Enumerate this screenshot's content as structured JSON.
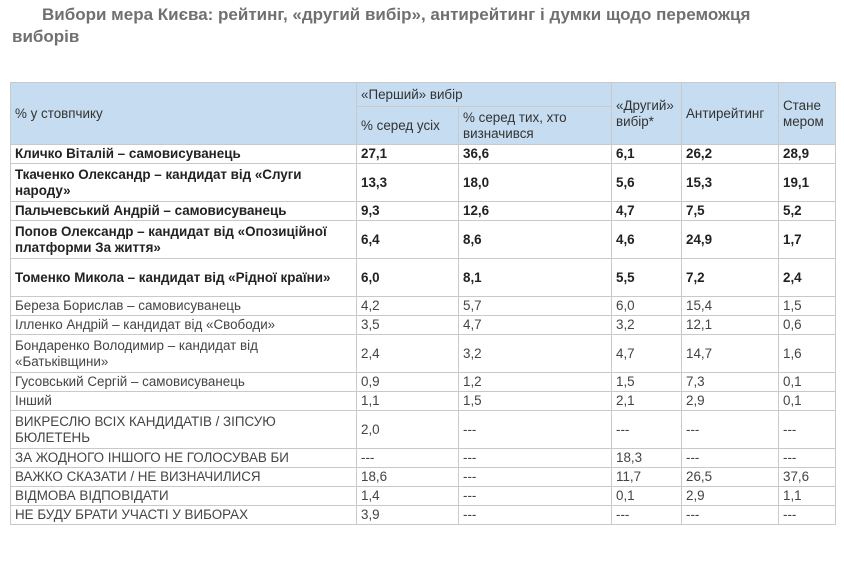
{
  "title": "Вибори мера Києва: рейтинг, «другий вибір», антирейтинг і думки щодо переможця виборів",
  "table": {
    "header": {
      "row_label": "% у стовпчику",
      "first_choice": "«Перший» вибір",
      "first_all": "% серед усіх",
      "first_decided": "% серед тих, хто визначився",
      "second_choice": "«Другий» вибір*",
      "antirating": "Антирейтинг",
      "will_win": "Стане мером"
    },
    "rows": [
      {
        "name": "Кличко Віталій – самовисуванець",
        "all": "27,1",
        "decided": "36,6",
        "second": "6,1",
        "anti": "26,2",
        "win": "28,9",
        "bold": true
      },
      {
        "name": "Ткаченко Олександр – кандидат від «Слуги народу»",
        "all": "13,3",
        "decided": "18,0",
        "second": "5,6",
        "anti": "15,3",
        "win": "19,1",
        "bold": true
      },
      {
        "name": "Пальчевський Андрій – самовисуванець",
        "all": "9,3",
        "decided": "12,6",
        "second": "4,7",
        "anti": "7,5",
        "win": "5,2",
        "bold": true
      },
      {
        "name": "Попов Олександр – кандидат від «Опозиційної платформи За життя»",
        "all": "6,4",
        "decided": "8,6",
        "second": "4,6",
        "anti": "24,9",
        "win": "1,7",
        "bold": true
      },
      {
        "name": "Томенко Микола – кандидат від «Рідної країни»",
        "all": "6,0",
        "decided": "8,1",
        "second": "5,5",
        "anti": "7,2",
        "win": "2,4",
        "bold": true
      },
      {
        "name": "Береза Борислав – самовисуванець",
        "all": "4,2",
        "decided": "5,7",
        "second": "6,0",
        "anti": "15,4",
        "win": "1,5",
        "bold": false
      },
      {
        "name": "Ілленко Андрій – кандидат від «Свободи»",
        "all": "3,5",
        "decided": "4,7",
        "second": "3,2",
        "anti": "12,1",
        "win": "0,6",
        "bold": false
      },
      {
        "name": "Бондаренко Володимир – кандидат від «Батьківщини»",
        "all": "2,4",
        "decided": "3,2",
        "second": "4,7",
        "anti": "14,7",
        "win": "1,6",
        "bold": false
      },
      {
        "name": "Гусовський Сергій – самовисуванець",
        "all": "0,9",
        "decided": "1,2",
        "second": "1,5",
        "anti": "7,3",
        "win": "0,1",
        "bold": false
      },
      {
        "name": "Інший",
        "all": "1,1",
        "decided": "1,5",
        "second": "2,1",
        "anti": "2,9",
        "win": "0,1",
        "bold": false
      },
      {
        "name": "ВИКРЕСЛЮ ВСІХ КАНДИДАТІВ / ЗІПСУЮ БЮЛЕТЕНЬ",
        "all": "2,0",
        "decided": "---",
        "second": "---",
        "anti": "---",
        "win": "---",
        "bold": false
      },
      {
        "name": "ЗА ЖОДНОГО ІНШОГО НЕ ГОЛОСУВАВ БИ",
        "all": "---",
        "decided": "---",
        "second": "18,3",
        "anti": "---",
        "win": "---",
        "bold": false
      },
      {
        "name": "ВАЖКО СКАЗАТИ / НЕ ВИЗНАЧИЛИСЯ",
        "all": "18,6",
        "decided": "---",
        "second": "11,7",
        "anti": "26,5",
        "win": "37,6",
        "bold": false
      },
      {
        "name": "ВІДМОВА ВІДПОВІДАТИ",
        "all": "1,4",
        "decided": "---",
        "second": "0,1",
        "anti": "2,9",
        "win": "1,1",
        "bold": false
      },
      {
        "name": "НЕ БУДУ БРАТИ УЧАСТІ У ВИБОРАХ",
        "all": "3,9",
        "decided": "---",
        "second": "---",
        "anti": "---",
        "win": "---",
        "bold": false
      }
    ]
  }
}
